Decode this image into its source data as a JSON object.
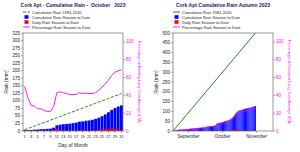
{
  "chart_data": [
    {
      "type": "bar",
      "title": "Cork Apt - Cumulative Rain -  October   2023",
      "x_label": "Day of Month",
      "y_label": "Rain (mm)",
      "y2_label": "Percentage of Monthly Long-Term Average (LTA)",
      "x": [
        1,
        2,
        3,
        4,
        5,
        6,
        7,
        8,
        9,
        10,
        11,
        12,
        13,
        14,
        15,
        16,
        17,
        18,
        19,
        20,
        21,
        22,
        23,
        24,
        25,
        26,
        27,
        28,
        29,
        30,
        31
      ],
      "xlim": [
        0.5,
        31.5
      ],
      "xticks": [
        1,
        3,
        5,
        7,
        9,
        11,
        13,
        15,
        17,
        19,
        21,
        23,
        25,
        27,
        29,
        31
      ],
      "ylim": [
        0,
        325
      ],
      "yticks": [
        0,
        25,
        50,
        75,
        100,
        125,
        150,
        175,
        200,
        225,
        250,
        275,
        300,
        325
      ],
      "y2lim": [
        0,
        110
      ],
      "y2ticks": [
        0,
        20,
        40,
        60,
        80,
        100
      ],
      "legend": "upper left",
      "grid": false,
      "stacked": false,
      "series": [
        {
          "name": "Cumulative Rain 1981-2010",
          "type": "line",
          "line_style": "dashed",
          "color": "#008000",
          "values": [
            4,
            8,
            12,
            16,
            20,
            24,
            28,
            32,
            36,
            40,
            44,
            48,
            52,
            56,
            60,
            64,
            68,
            72,
            76,
            80,
            84,
            88,
            92,
            96,
            100,
            104,
            108,
            112,
            116,
            120,
            124
          ]
        },
        {
          "name": "Cumulative Rain Season to Date",
          "type": "bar",
          "color": "#0000FF",
          "values": [
            2,
            3,
            3.5,
            4.5,
            5,
            6,
            6.5,
            7,
            8,
            11,
            19,
            21,
            22.5,
            23.5,
            24.5,
            26,
            28,
            31,
            32,
            34,
            35,
            37,
            40,
            44,
            49,
            55,
            62,
            70,
            76,
            81,
            85
          ]
        },
        {
          "name": "Daily Rain Season to Date",
          "type": "bar",
          "color": "#FF0000",
          "values": [
            2.0,
            1.0,
            0.5,
            1.0,
            0.5,
            1.0,
            0.5,
            0.5,
            1.0,
            3.0,
            8.0,
            2.0,
            1.5,
            1.0,
            1.0,
            1.5,
            2.0,
            3.0,
            1.0,
            2.0,
            1.0,
            2.0,
            3.0,
            4.0,
            5.0,
            6.0,
            7.0,
            8.0,
            6.0,
            5.0,
            4.0
          ]
        },
        {
          "name": "Percentage Rain Season to Date",
          "type": "line",
          "line_style": "solid",
          "color": "#FF00FF",
          "axis": "y2",
          "values": [
            50,
            37.5,
            29,
            28,
            25,
            25,
            23,
            22,
            22,
            27.5,
            43,
            44,
            43,
            42,
            41,
            41,
            41,
            43,
            42,
            42.5,
            42,
            42,
            43,
            46,
            49,
            53,
            57,
            62.5,
            66,
            67.5,
            68.5
          ]
        }
      ]
    },
    {
      "type": "bar",
      "title": "Cork Apt Cumulative Rain Autumn 2023",
      "y_label": "Rain (mm)",
      "y2_label": "Percentage of Seasonal Long-Term Average (LTA)",
      "x": [
        1,
        2,
        3,
        4,
        5,
        6,
        7,
        8,
        9,
        10,
        11,
        12,
        13,
        14,
        15,
        16,
        17,
        18,
        19,
        20,
        21,
        22,
        23,
        24,
        25,
        26,
        27,
        28,
        29,
        30,
        31,
        32,
        33,
        34,
        35,
        36,
        37,
        38,
        39,
        40,
        41,
        42,
        43,
        44,
        45,
        46,
        47,
        48,
        49,
        50,
        51,
        52,
        53,
        54,
        55,
        56,
        57,
        58,
        59,
        60,
        61,
        62,
        63,
        64,
        65,
        66,
        67,
        68,
        69,
        70,
        71,
        72,
        73,
        74,
        75,
        76
      ],
      "xlim": [
        1,
        92
      ],
      "xticks": [
        {
          "value": 15,
          "label": "September"
        },
        {
          "value": 46,
          "label": "October"
        },
        {
          "value": 77,
          "label": "November"
        }
      ],
      "ylim": [
        0,
        500
      ],
      "yticks": [
        0,
        50,
        100,
        150,
        200,
        250,
        300,
        350,
        400,
        450,
        500
      ],
      "y2lim": [
        0,
        110
      ],
      "y2ticks": [
        0,
        20,
        40,
        60,
        80,
        100
      ],
      "legend": "upper left",
      "grid": false,
      "stacked": false,
      "series": [
        {
          "name": "Cumulative Rain 1981-2010",
          "type": "line",
          "line_style": "solid",
          "color": "#008000",
          "x": [
            1,
            76
          ],
          "values": [
            0,
            500
          ]
        },
        {
          "name": "Cumulative Rain Season to Date",
          "type": "bar",
          "color": "#0000FF",
          "values": [
            0.5,
            0.8,
            1.3,
            2.8,
            3.3,
            5.3,
            5.8,
            6.1,
            6.4,
            6.9,
            7.4,
            7.9,
            8.2,
            8.5,
            9.0,
            9.5,
            11.0,
            11.5,
            11.8,
            12.3,
            12.8,
            14.3,
            14.8,
            15.3,
            15.8,
            16.1,
            16.4,
            16.9,
            17.4,
            18.9,
            20.9,
            21.9,
            22.4,
            23.4,
            23.9,
            24.9,
            25.4,
            25.9,
            26.9,
            29.9,
            37.9,
            39.9,
            41.4,
            42.4,
            43.4,
            44.9,
            46.9,
            49.9,
            50.9,
            52.9,
            53.9,
            55.9,
            58.9,
            62.9,
            67.9,
            73.9,
            80.9,
            88.9,
            94.9,
            99.9,
            103.9,
            105.9,
            107.4,
            109.4,
            110.4,
            111.9,
            113.9,
            114.9,
            116.4,
            118.4,
            119.4,
            120.9,
            122.9,
            123.9,
            125.4,
            127.4
          ]
        },
        {
          "name": "Daily Rain Season to Date",
          "type": "bar",
          "color": "#FF0000",
          "values": [
            0.5,
            0.3,
            0.5,
            1.5,
            0.5,
            2.0,
            0.5,
            0.3,
            0.3,
            0.5,
            0.5,
            0.5,
            0.3,
            0.3,
            0.5,
            0.5,
            1.5,
            0.5,
            0.3,
            0.5,
            0.5,
            1.5,
            0.5,
            0.5,
            0.5,
            0.3,
            0.3,
            0.5,
            0.5,
            1.5,
            2.0,
            1.0,
            0.5,
            1.0,
            0.5,
            1.0,
            0.5,
            0.5,
            1.0,
            3.0,
            8.0,
            2.0,
            1.5,
            1.0,
            1.0,
            1.5,
            2.0,
            3.0,
            1.0,
            2.0,
            1.0,
            2.0,
            3.0,
            4.0,
            5.0,
            6.0,
            7.0,
            8.0,
            6.0,
            5.0,
            4.0,
            2.0,
            1.5,
            2.0,
            1.0,
            1.5,
            2.0,
            1.0,
            1.5,
            2.0,
            1.0,
            1.5,
            2.0,
            1.0,
            1.5,
            2.0
          ]
        },
        {
          "name": "Percentage Rain Season to Date",
          "type": "line",
          "line_style": "solid",
          "color": "#FF00FF",
          "axis": "y2",
          "values": [
            0.1,
            0.16,
            0.26,
            0.56,
            0.66,
            1.06,
            1.16,
            1.22,
            1.28,
            1.38,
            1.48,
            1.58,
            1.64,
            1.7,
            1.8,
            1.9,
            2.2,
            2.3,
            2.36,
            2.46,
            2.56,
            2.86,
            2.96,
            3.06,
            3.16,
            3.22,
            3.28,
            3.38,
            3.48,
            3.78,
            4.18,
            4.38,
            4.48,
            4.68,
            4.78,
            4.98,
            5.08,
            5.18,
            5.38,
            5.98,
            7.58,
            7.98,
            8.28,
            8.48,
            8.68,
            8.98,
            9.38,
            9.98,
            10.18,
            10.58,
            10.78,
            11.18,
            11.78,
            12.58,
            13.58,
            14.78,
            16.18,
            17.78,
            18.98,
            19.98,
            20.78,
            21.18,
            21.48,
            21.88,
            22.08,
            22.38,
            22.78,
            22.98,
            23.28,
            23.68,
            23.88,
            24.18,
            24.58,
            24.78,
            25.08,
            25.48
          ]
        }
      ]
    }
  ]
}
